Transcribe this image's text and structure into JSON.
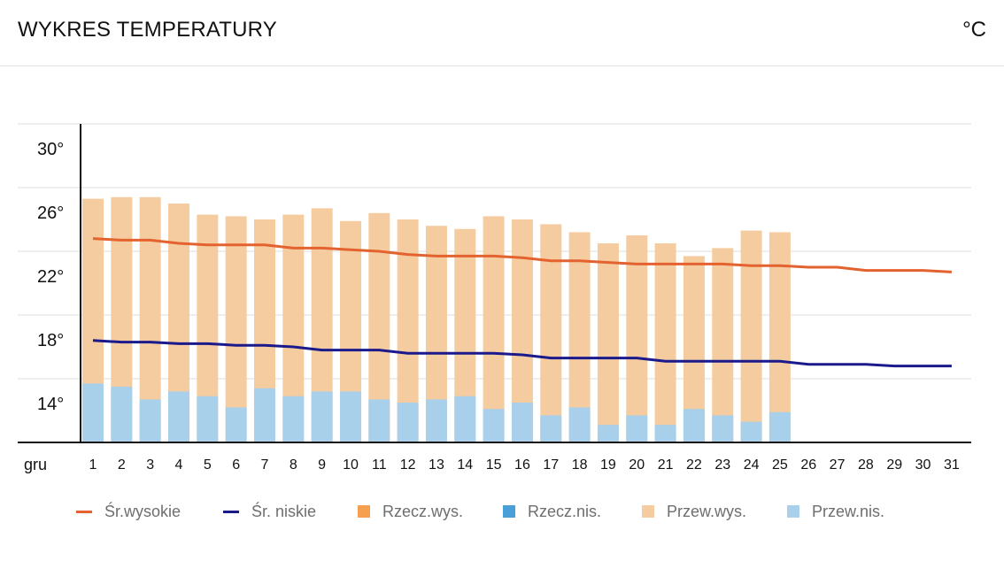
{
  "header": {
    "title": "WYKRES TEMPERATURY",
    "unit": "°C"
  },
  "colors": {
    "avg_high": "#e4622f",
    "avg_low": "#1a1a8c",
    "actual_high": "#f5a04e",
    "actual_low": "#4a9fd8",
    "normal_high": "#f5cc9f",
    "normal_low": "#a9d0ea",
    "grid": "#dddddd",
    "axis": "#111111"
  },
  "chart_data": {
    "type": "bar",
    "title": "WYKRES TEMPERATURY",
    "xlabel": "gru",
    "ylabel": "°C",
    "ylim": [
      12,
      31
    ],
    "yticks": [
      14,
      18,
      22,
      26,
      30
    ],
    "ytick_labels": [
      "14°",
      "18°",
      "22°",
      "26°",
      "30°"
    ],
    "categories": [
      "1",
      "2",
      "3",
      "4",
      "5",
      "6",
      "7",
      "8",
      "9",
      "10",
      "11",
      "12",
      "13",
      "14",
      "15",
      "16",
      "17",
      "18",
      "19",
      "20",
      "21",
      "22",
      "23",
      "24",
      "25",
      "26",
      "27",
      "28",
      "29",
      "30",
      "31"
    ],
    "series": [
      {
        "name": "Przew.wys.",
        "kind": "bar",
        "values": [
          27.3,
          27.4,
          27.4,
          27.0,
          26.3,
          26.2,
          26.0,
          26.3,
          26.7,
          25.9,
          26.4,
          26.0,
          25.6,
          25.4,
          26.2,
          26.0,
          25.7,
          25.2,
          24.5,
          25.0,
          24.5,
          23.7,
          24.2,
          25.3,
          25.2,
          null,
          null,
          null,
          null,
          null,
          null
        ]
      },
      {
        "name": "Przew.nis.",
        "kind": "bar",
        "values": [
          15.7,
          15.5,
          14.7,
          15.2,
          14.9,
          14.2,
          15.4,
          14.9,
          15.2,
          15.2,
          14.7,
          14.5,
          14.7,
          14.9,
          14.1,
          14.5,
          13.7,
          14.2,
          13.1,
          13.7,
          13.1,
          14.1,
          13.7,
          13.3,
          13.9,
          null,
          null,
          null,
          null,
          null,
          null
        ]
      },
      {
        "name": "Śr.wysokie",
        "kind": "line",
        "values": [
          24.8,
          24.7,
          24.7,
          24.5,
          24.4,
          24.4,
          24.4,
          24.2,
          24.2,
          24.1,
          24.0,
          23.8,
          23.7,
          23.7,
          23.7,
          23.6,
          23.4,
          23.4,
          23.3,
          23.2,
          23.2,
          23.2,
          23.2,
          23.1,
          23.1,
          23.0,
          23.0,
          22.8,
          22.8,
          22.8,
          22.7
        ]
      },
      {
        "name": "Śr. niskie",
        "kind": "line",
        "values": [
          18.4,
          18.3,
          18.3,
          18.2,
          18.2,
          18.1,
          18.1,
          18.0,
          17.8,
          17.8,
          17.8,
          17.6,
          17.6,
          17.6,
          17.6,
          17.5,
          17.3,
          17.3,
          17.3,
          17.3,
          17.1,
          17.1,
          17.1,
          17.1,
          17.1,
          16.9,
          16.9,
          16.9,
          16.8,
          16.8,
          16.8
        ]
      }
    ],
    "legend": [
      {
        "label": "Śr.wysokie",
        "style": "line",
        "color": "#e4622f"
      },
      {
        "label": "Śr. niskie",
        "style": "line",
        "color": "#1a1a8c"
      },
      {
        "label": "Rzecz.wys.",
        "style": "box",
        "color": "#f5a04e"
      },
      {
        "label": "Rzecz.nis.",
        "style": "box",
        "color": "#4a9fd8"
      },
      {
        "label": "Przew.wys.",
        "style": "box",
        "color": "#f5cc9f"
      },
      {
        "label": "Przew.nis.",
        "style": "box",
        "color": "#a9d0ea"
      }
    ],
    "legend_position": "bottom",
    "grid": true
  }
}
